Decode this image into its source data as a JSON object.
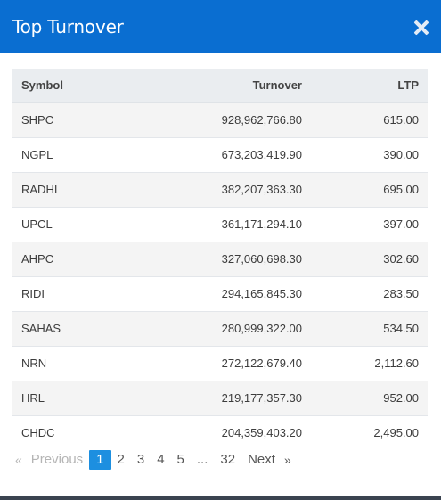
{
  "modal": {
    "title": "Top Turnover",
    "close_icon": "close-icon"
  },
  "table": {
    "headers": {
      "symbol": "Symbol",
      "turnover": "Turnover",
      "ltp": "LTP"
    },
    "rows": [
      {
        "symbol": "SHPC",
        "turnover": "928,962,766.80",
        "ltp": "615.00"
      },
      {
        "symbol": "NGPL",
        "turnover": "673,203,419.90",
        "ltp": "390.00"
      },
      {
        "symbol": "RADHI",
        "turnover": "382,207,363.30",
        "ltp": "695.00"
      },
      {
        "symbol": "UPCL",
        "turnover": "361,171,294.10",
        "ltp": "397.00"
      },
      {
        "symbol": "AHPC",
        "turnover": "327,060,698.30",
        "ltp": "302.60"
      },
      {
        "symbol": "RIDI",
        "turnover": "294,165,845.30",
        "ltp": "283.50"
      },
      {
        "symbol": "SAHAS",
        "turnover": "280,999,322.00",
        "ltp": "534.50"
      },
      {
        "symbol": "NRN",
        "turnover": "272,122,679.40",
        "ltp": "2,112.60"
      },
      {
        "symbol": "HRL",
        "turnover": "219,177,357.30",
        "ltp": "952.00"
      },
      {
        "symbol": "CHDC",
        "turnover": "204,359,403.20",
        "ltp": "2,495.00"
      }
    ]
  },
  "pagination": {
    "first_arrow": "«",
    "previous": "Previous",
    "pages": [
      "1",
      "2",
      "3",
      "4",
      "5",
      "...",
      "32"
    ],
    "active_page": "1",
    "next": "Next",
    "last_arrow": "»"
  },
  "colors": {
    "header_bg": "#0a6ed1",
    "active_page_bg": "#1d8fe0"
  }
}
